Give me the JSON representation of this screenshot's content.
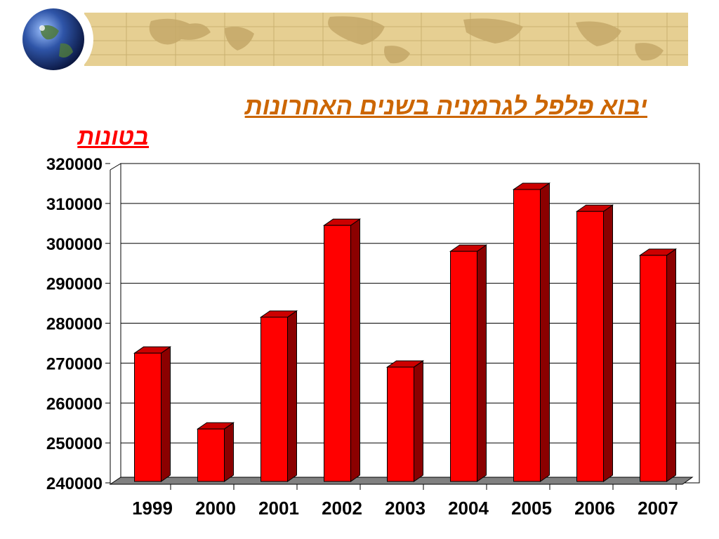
{
  "slide": {
    "title": "יבוא פלפל לגרמניה בשנים האחרונות",
    "unit_label": "בטונות"
  },
  "colors": {
    "title": "#cc6600",
    "unit_label": "#ff0000",
    "bar_front": "#ff0000",
    "bar_side": "#8b0000",
    "bar_top": "#cc0000",
    "floor": "#808080"
  },
  "chart_data": {
    "type": "bar",
    "categories": [
      "1999",
      "2000",
      "2001",
      "2002",
      "2003",
      "2004",
      "2005",
      "2006",
      "2007"
    ],
    "series": [
      {
        "values": [
          272500,
          253500,
          281500,
          304500,
          269000,
          298000,
          313500,
          308000,
          297000
        ]
      }
    ],
    "ylim": [
      240000,
      320000
    ],
    "yticks": [
      "240000",
      "250000",
      "260000",
      "270000",
      "280000",
      "290000",
      "300000",
      "310000",
      "320000"
    ],
    "grid": true,
    "style": "3d-bar",
    "xlabel": "",
    "ylabel": ""
  }
}
